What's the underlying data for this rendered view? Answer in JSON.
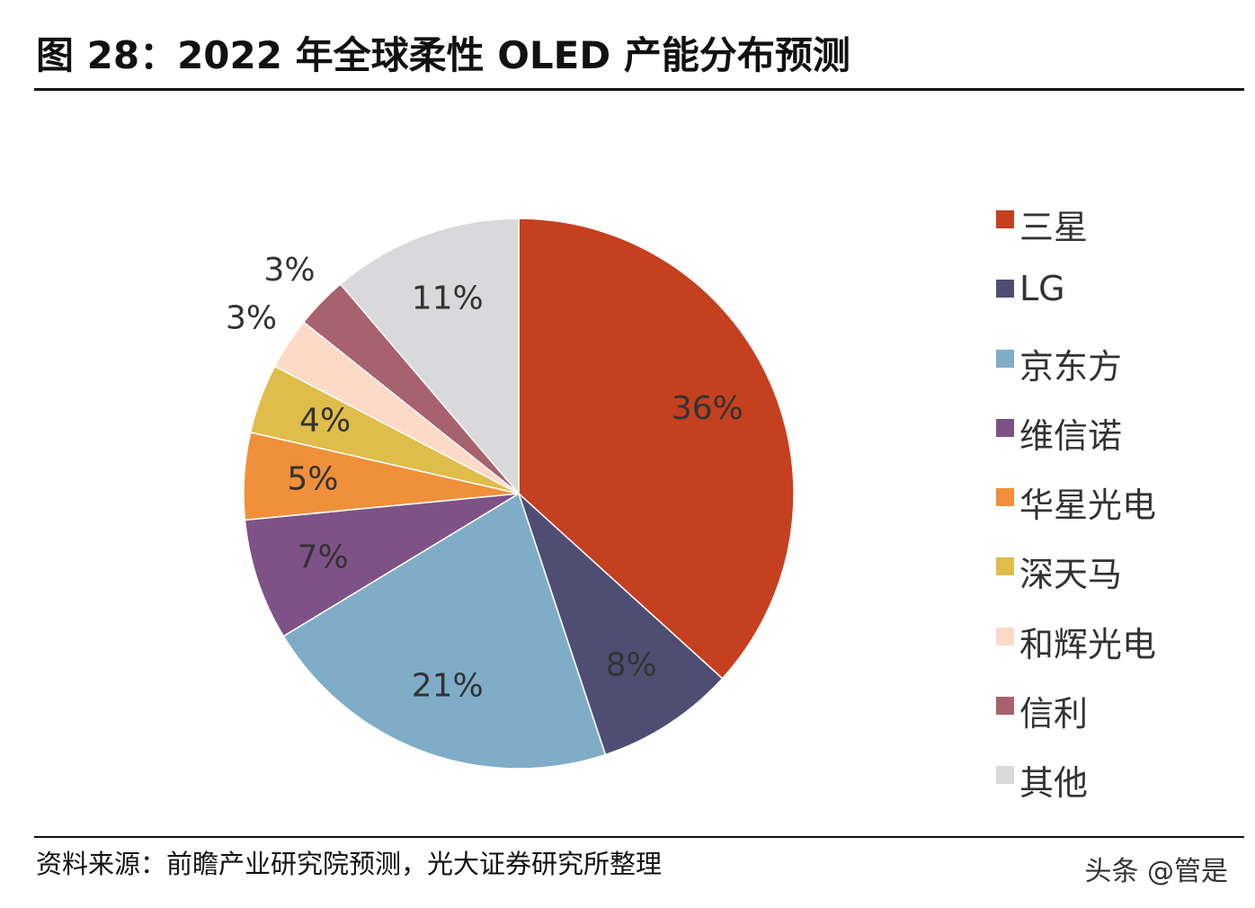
{
  "title": "图 28：2022 年全球柔性 OLED 产能分布预测",
  "source": "资料来源：前瞻产业研究院预测，光大证券研究所整理",
  "watermark": "头条 @管是",
  "chart_data": {
    "type": "pie",
    "title": "图 28：2022 年全球柔性 OLED 产能分布预测",
    "start_angle": "12 o'clock",
    "direction": "clockwise",
    "legend_position": "right",
    "categories": [
      "三星",
      "LG",
      "京东方",
      "维信诺",
      "华星光电",
      "深天马",
      "和辉光电",
      "信利",
      "其他"
    ],
    "values": [
      36,
      8,
      21,
      7,
      5,
      4,
      3,
      3,
      11
    ],
    "labels": [
      "36%",
      "8%",
      "21%",
      "7%",
      "5%",
      "4%",
      "3%",
      "3%",
      "11%"
    ],
    "colors": [
      "#C5401E",
      "#4F4E72",
      "#7FADC8",
      "#7E5287",
      "#F0903A",
      "#E0BC4A",
      "#FDD9C8",
      "#A8626E",
      "#D9D9DC"
    ]
  }
}
